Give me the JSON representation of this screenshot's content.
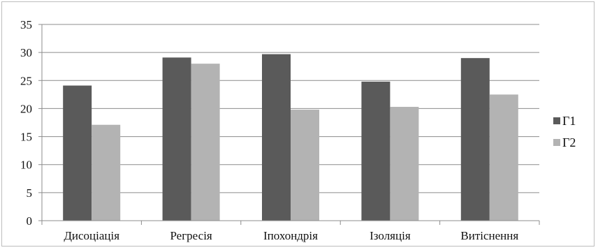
{
  "chart_data": {
    "type": "bar",
    "title": "",
    "xlabel": "",
    "ylabel": "",
    "categories": [
      "Дисоціація",
      "Регресія",
      "Іпохондрія",
      "Ізоляція",
      "Витіснення"
    ],
    "series": [
      {
        "name": "Г1",
        "color": "#5a5a5a",
        "values": [
          24.1,
          29.1,
          29.7,
          24.8,
          29.0
        ]
      },
      {
        "name": "Г2",
        "color": "#b3b3b3",
        "values": [
          17.1,
          28.0,
          19.8,
          20.3,
          22.5
        ]
      }
    ],
    "ylim": [
      0,
      35
    ],
    "yticks": [
      "0",
      "5",
      "10",
      "15",
      "20",
      "25",
      "30",
      "35"
    ],
    "grid": "horizontal",
    "legend_position": "right"
  }
}
